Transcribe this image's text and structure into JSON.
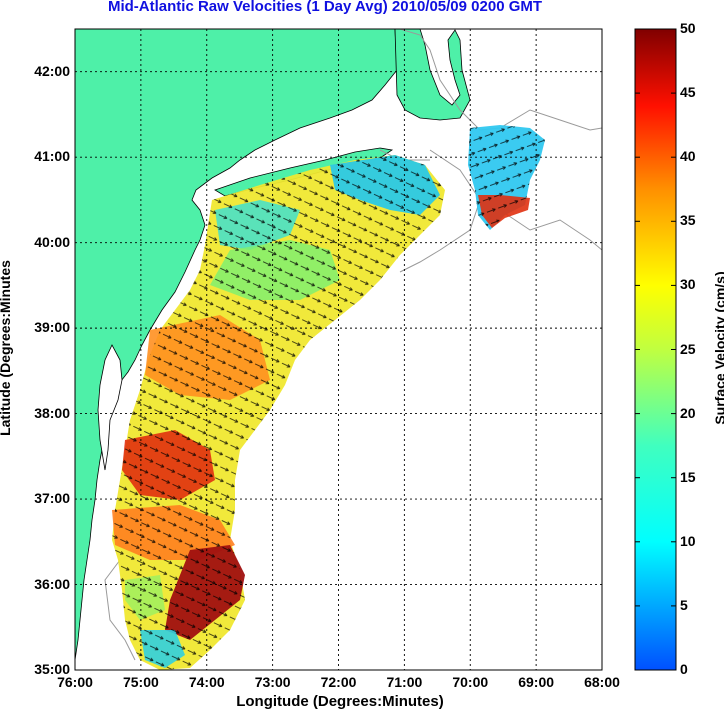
{
  "title": "Mid-Atlantic Raw Velocities (1 Day Avg) 2010/05/09 0200 GMT",
  "axes": {
    "xlabel": "Longitude (Degrees:Minutes)",
    "ylabel": "Latitude (Degrees:Minutes",
    "x_ticks": [
      "76:00",
      "75:00",
      "74:00",
      "73:00",
      "72:00",
      "71:00",
      "70:00",
      "69:00",
      "68:00"
    ],
    "y_ticks": [
      "35:00",
      "36:00",
      "37:00",
      "38:00",
      "39:00",
      "40:00",
      "41:00",
      "42:00"
    ],
    "lon_range": [
      -76,
      -68
    ],
    "lat_range": [
      35,
      42.5
    ]
  },
  "colorbar": {
    "label": "Surface Velocity (cm/s)",
    "ticks": [
      "0",
      "5",
      "10",
      "15",
      "20",
      "25",
      "30",
      "35",
      "40",
      "45",
      "50"
    ],
    "range": [
      0,
      50
    ],
    "colormap": "jet"
  },
  "colors": {
    "land": "#4ef0a8",
    "title": "#1010e0",
    "grid": "#000000",
    "bathymetry": "#9a9a9a"
  }
}
